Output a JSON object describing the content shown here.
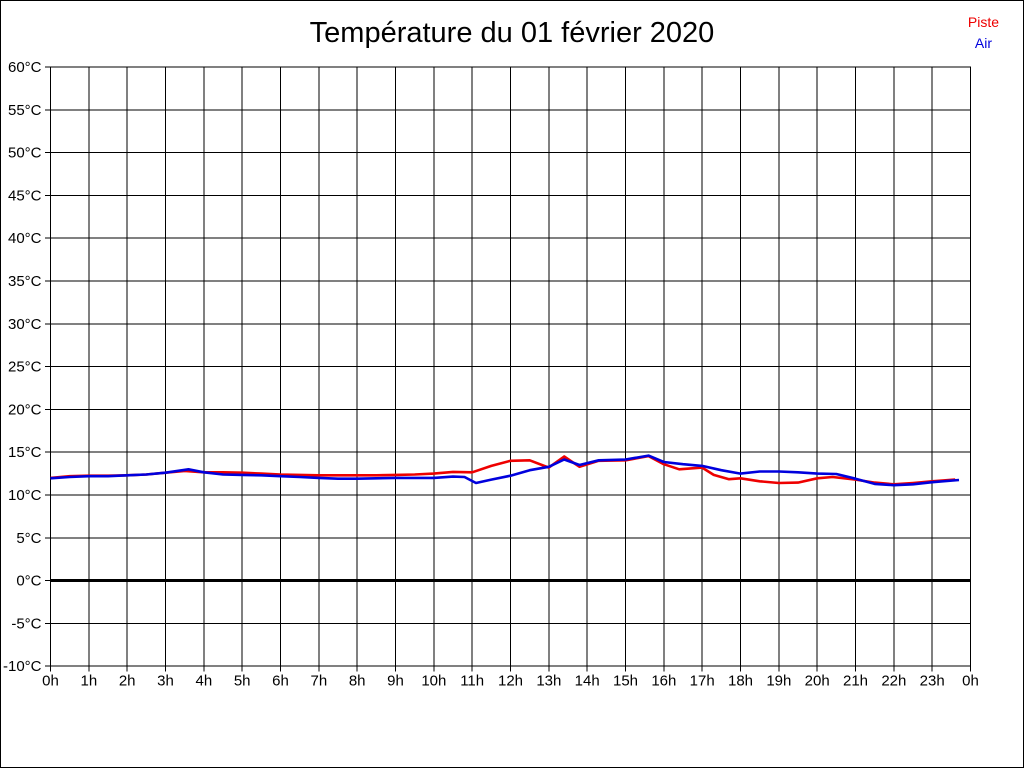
{
  "window": {
    "background": "#ffffff",
    "border_color": "#000000"
  },
  "header": {
    "title": "Température du 01 février 2020"
  },
  "legend": {
    "position": "top-right",
    "items": [
      {
        "label": "Piste",
        "color": "#ee0000"
      },
      {
        "label": "Air",
        "color": "#0000dd"
      }
    ]
  },
  "chart_data": {
    "type": "line",
    "title": "Température du 01 février 2020",
    "xlabel": "",
    "ylabel": "",
    "x_unit": "hours",
    "xlim": [
      0,
      24
    ],
    "ylim": [
      -10,
      60
    ],
    "grid": true,
    "grid_color": "#000000",
    "zero_line_emphasized": true,
    "x_tick_hours": [
      0,
      1,
      2,
      3,
      4,
      5,
      6,
      7,
      8,
      9,
      10,
      11,
      12,
      13,
      14,
      15,
      16,
      17,
      18,
      19,
      20,
      21,
      22,
      23,
      24
    ],
    "x_tick_labels": [
      "0h",
      "1h",
      "2h",
      "3h",
      "4h",
      "5h",
      "6h",
      "7h",
      "8h",
      "9h",
      "10h",
      "11h",
      "12h",
      "13h",
      "14h",
      "15h",
      "16h",
      "17h",
      "18h",
      "19h",
      "20h",
      "21h",
      "22h",
      "23h",
      "0h"
    ],
    "y_ticks": [
      60,
      55,
      50,
      45,
      40,
      35,
      30,
      25,
      20,
      15,
      10,
      5,
      0,
      -5,
      -10
    ],
    "y_tick_suffix": "°C",
    "series": [
      {
        "name": "Piste",
        "color": "#ee0000",
        "points": [
          [
            0,
            12.0
          ],
          [
            0.5,
            12.2
          ],
          [
            1,
            12.25
          ],
          [
            1.5,
            12.25
          ],
          [
            2,
            12.3
          ],
          [
            2.5,
            12.4
          ],
          [
            3,
            12.6
          ],
          [
            3.5,
            12.8
          ],
          [
            4,
            12.65
          ],
          [
            4.5,
            12.65
          ],
          [
            5,
            12.6
          ],
          [
            5.5,
            12.5
          ],
          [
            6,
            12.4
          ],
          [
            6.5,
            12.35
          ],
          [
            7,
            12.3
          ],
          [
            7.5,
            12.3
          ],
          [
            8,
            12.3
          ],
          [
            8.5,
            12.3
          ],
          [
            9,
            12.35
          ],
          [
            9.5,
            12.4
          ],
          [
            10,
            12.5
          ],
          [
            10.5,
            12.7
          ],
          [
            11,
            12.65
          ],
          [
            11.5,
            13.4
          ],
          [
            12,
            14.0
          ],
          [
            12.5,
            14.05
          ],
          [
            13,
            13.2
          ],
          [
            13.4,
            14.5
          ],
          [
            13.8,
            13.3
          ],
          [
            14.3,
            14.0
          ],
          [
            15,
            14.05
          ],
          [
            15.6,
            14.55
          ],
          [
            16,
            13.6
          ],
          [
            16.4,
            13.0
          ],
          [
            17,
            13.2
          ],
          [
            17.3,
            12.35
          ],
          [
            17.7,
            11.85
          ],
          [
            18,
            11.95
          ],
          [
            18.5,
            11.6
          ],
          [
            19,
            11.4
          ],
          [
            19.5,
            11.45
          ],
          [
            20,
            11.95
          ],
          [
            20.4,
            12.1
          ],
          [
            21,
            11.8
          ],
          [
            21.5,
            11.45
          ],
          [
            22,
            11.25
          ],
          [
            22.5,
            11.4
          ],
          [
            23,
            11.6
          ],
          [
            23.6,
            11.8
          ]
        ]
      },
      {
        "name": "Air",
        "color": "#0000dd",
        "points": [
          [
            0,
            11.95
          ],
          [
            0.5,
            12.1
          ],
          [
            1,
            12.2
          ],
          [
            1.5,
            12.2
          ],
          [
            2,
            12.3
          ],
          [
            2.5,
            12.4
          ],
          [
            3,
            12.6
          ],
          [
            3.6,
            13.0
          ],
          [
            4,
            12.65
          ],
          [
            4.5,
            12.4
          ],
          [
            5,
            12.35
          ],
          [
            5.5,
            12.3
          ],
          [
            6,
            12.2
          ],
          [
            6.5,
            12.1
          ],
          [
            7,
            12.0
          ],
          [
            7.5,
            11.9
          ],
          [
            8,
            11.9
          ],
          [
            8.5,
            11.95
          ],
          [
            9,
            12.0
          ],
          [
            9.5,
            12.0
          ],
          [
            10,
            12.0
          ],
          [
            10.5,
            12.15
          ],
          [
            10.8,
            12.1
          ],
          [
            11.1,
            11.4
          ],
          [
            11.5,
            11.8
          ],
          [
            12,
            12.25
          ],
          [
            12.5,
            12.9
          ],
          [
            13,
            13.3
          ],
          [
            13.4,
            14.15
          ],
          [
            13.8,
            13.5
          ],
          [
            14.3,
            14.05
          ],
          [
            15,
            14.15
          ],
          [
            15.6,
            14.6
          ],
          [
            16,
            13.85
          ],
          [
            16.5,
            13.6
          ],
          [
            17,
            13.4
          ],
          [
            17.5,
            12.9
          ],
          [
            18,
            12.5
          ],
          [
            18.5,
            12.75
          ],
          [
            19,
            12.75
          ],
          [
            19.5,
            12.65
          ],
          [
            20,
            12.5
          ],
          [
            20.5,
            12.45
          ],
          [
            21,
            11.9
          ],
          [
            21.5,
            11.3
          ],
          [
            22,
            11.15
          ],
          [
            22.5,
            11.25
          ],
          [
            23,
            11.5
          ],
          [
            23.7,
            11.75
          ]
        ]
      }
    ]
  }
}
